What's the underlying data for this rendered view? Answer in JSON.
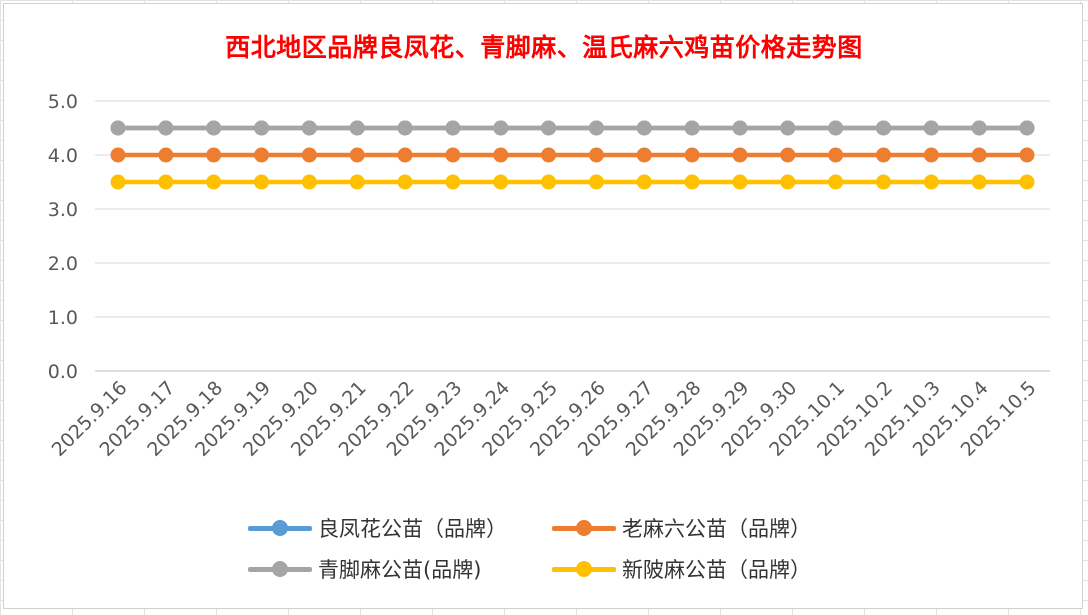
{
  "chart_data": {
    "type": "line",
    "title": "西北地区品牌良凤花、青脚麻、温氏麻六鸡苗价格走势图",
    "xlabel": "",
    "ylabel": "",
    "categories": [
      "2025.9.16",
      "2025.9.17",
      "2025.9.18",
      "2025.9.19",
      "2025.9.20",
      "2025.9.21",
      "2025.9.22",
      "2025.9.23",
      "2025.9.24",
      "2025.9.25",
      "2025.9.26",
      "2025.9.27",
      "2025.9.28",
      "2025.9.29",
      "2025.9.30",
      "2025.10.1",
      "2025.10.2",
      "2025.10.3",
      "2025.10.4",
      "2025.10.5"
    ],
    "ylim": [
      0,
      5
    ],
    "yticks": [
      "0.0",
      "1.0",
      "2.0",
      "3.0",
      "4.0",
      "5.0"
    ],
    "grid": true,
    "legend_position": "bottom",
    "series": [
      {
        "name": "良凤花公苗（品牌）",
        "color": "#5b9bd5",
        "values": [
          4.5,
          4.5,
          4.5,
          4.5,
          4.5,
          4.5,
          4.5,
          4.5,
          4.5,
          4.5,
          4.5,
          4.5,
          4.5,
          4.5,
          4.5,
          4.5,
          4.5,
          4.5,
          4.5,
          4.5
        ]
      },
      {
        "name": "老麻六公苗（品牌）",
        "color": "#ed7d31",
        "values": [
          4.0,
          4.0,
          4.0,
          4.0,
          4.0,
          4.0,
          4.0,
          4.0,
          4.0,
          4.0,
          4.0,
          4.0,
          4.0,
          4.0,
          4.0,
          4.0,
          4.0,
          4.0,
          4.0,
          4.0
        ]
      },
      {
        "name": "青脚麻公苗(品牌)",
        "color": "#a5a5a5",
        "values": [
          4.5,
          4.5,
          4.5,
          4.5,
          4.5,
          4.5,
          4.5,
          4.5,
          4.5,
          4.5,
          4.5,
          4.5,
          4.5,
          4.5,
          4.5,
          4.5,
          4.5,
          4.5,
          4.5,
          4.5
        ]
      },
      {
        "name": "新陂麻公苗（品牌）",
        "color": "#ffc000",
        "values": [
          3.5,
          3.5,
          3.5,
          3.5,
          3.5,
          3.5,
          3.5,
          3.5,
          3.5,
          3.5,
          3.5,
          3.5,
          3.5,
          3.5,
          3.5,
          3.5,
          3.5,
          3.5,
          3.5,
          3.5
        ]
      }
    ]
  }
}
